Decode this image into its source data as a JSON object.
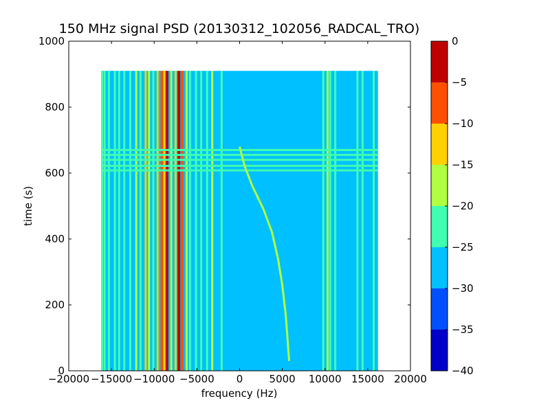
{
  "chart_data": {
    "type": "heatmap",
    "title": "150 MHz signal PSD (20130312_102056_RADCAL_TRO)",
    "xlabel": "frequency (Hz)",
    "ylabel": "time (s)",
    "xlim": [
      -20000,
      20000
    ],
    "ylim": [
      0,
      1000
    ],
    "x_ticks": [
      -20000,
      -15000,
      -10000,
      -5000,
      0,
      5000,
      10000,
      15000,
      20000
    ],
    "x_tick_labels": [
      "−20000",
      "−15000",
      "−10000",
      "−5000",
      "0",
      "5000",
      "10000",
      "15000",
      "20000"
    ],
    "y_ticks": [
      0,
      200,
      400,
      600,
      800,
      1000
    ],
    "y_tick_labels": [
      "0",
      "200",
      "400",
      "600",
      "800",
      "1000"
    ],
    "data_extent": {
      "freq_min": -16200,
      "freq_max": 16200,
      "time_min": 0,
      "time_max": 910
    },
    "background_level": -27.5,
    "colorbar": {
      "levels": [
        -40,
        -35,
        -30,
        -25,
        -20,
        -15,
        -10,
        -5,
        0
      ],
      "tick_labels": [
        "−40",
        "−35",
        "−30",
        "−25",
        "−20",
        "−15",
        "−10",
        "−5",
        "0"
      ],
      "colors": [
        "#0000c8",
        "#0050ff",
        "#00c0ff",
        "#40ffb0",
        "#b0ff40",
        "#ffd000",
        "#ff5000",
        "#c00000"
      ]
    },
    "vertical_features": [
      {
        "freq": -16100,
        "level": -22.5
      },
      {
        "freq": -15800,
        "level": -22.5
      },
      {
        "freq": -15300,
        "level": -22.5
      },
      {
        "freq": -14600,
        "level": -22.5
      },
      {
        "freq": -14100,
        "level": -22.5
      },
      {
        "freq": -13500,
        "level": -22.5
      },
      {
        "freq": -12800,
        "level": -22.5
      },
      {
        "freq": -12100,
        "level": -17.5
      },
      {
        "freq": -11600,
        "level": -22.5
      },
      {
        "freq": -11000,
        "level": -12.5
      },
      {
        "freq": -10600,
        "level": -17.5
      },
      {
        "freq": -10100,
        "level": -22.5
      },
      {
        "freq": -9600,
        "level": -12.5
      },
      {
        "freq": -9100,
        "level": -7.5
      },
      {
        "freq": -8800,
        "level": -12.5
      },
      {
        "freq": -8500,
        "level": -2.5
      },
      {
        "freq": -8000,
        "level": -17.5
      },
      {
        "freq": -7500,
        "level": -12.5
      },
      {
        "freq": -7100,
        "level": -2.5
      },
      {
        "freq": -6700,
        "level": -7.5
      },
      {
        "freq": -6200,
        "level": -17.5
      },
      {
        "freq": -5800,
        "level": -22.5
      },
      {
        "freq": -5100,
        "level": -22.5
      },
      {
        "freq": -4500,
        "level": -22.5
      },
      {
        "freq": -3800,
        "level": -22.5
      },
      {
        "freq": -3200,
        "level": -17.5
      },
      {
        "freq": -2100,
        "level": -22.5
      },
      {
        "freq": 9800,
        "level": -22.5
      },
      {
        "freq": 10300,
        "level": -17.5
      },
      {
        "freq": 10600,
        "level": -22.5
      },
      {
        "freq": 11200,
        "level": -22.5
      },
      {
        "freq": 13800,
        "level": -22.5
      },
      {
        "freq": 14400,
        "level": -22.5
      },
      {
        "freq": 15700,
        "level": -22.5
      }
    ],
    "horizontal_features": [
      {
        "time": 608,
        "level": -22.5
      },
      {
        "time": 622,
        "level": -22.5
      },
      {
        "time": 640,
        "level": -22.5
      },
      {
        "time": 655,
        "level": -22.5
      },
      {
        "time": 670,
        "level": -22.5
      }
    ],
    "drift_trace": {
      "level": -17.5,
      "points": [
        {
          "freq": 5800,
          "time": 30
        },
        {
          "freq": 5600,
          "time": 100
        },
        {
          "freq": 5400,
          "time": 170
        },
        {
          "freq": 5000,
          "time": 260
        },
        {
          "freq": 4500,
          "time": 340
        },
        {
          "freq": 3800,
          "time": 420
        },
        {
          "freq": 2800,
          "time": 490
        },
        {
          "freq": 1500,
          "time": 560
        },
        {
          "freq": 600,
          "time": 620
        },
        {
          "freq": 0,
          "time": 680
        }
      ]
    }
  }
}
